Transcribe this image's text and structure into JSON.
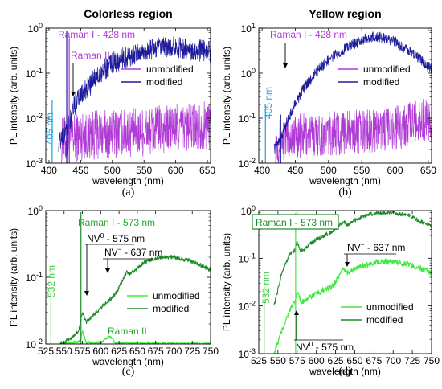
{
  "colors": {
    "unmodified_ab": "#b03ad6",
    "modified_ab": "#1d1a9c",
    "laser_ab": "#16a5e0",
    "unmodified_cd": "#3fea3f",
    "modified_cd": "#1d8a2a",
    "laser_cd": "#40c940",
    "raman_label_ab": "#b03ad6",
    "raman_label_cd": "#25a52f",
    "axis": "#000000"
  },
  "chart_data": [
    {
      "type": "line",
      "panel_caption": "(a)",
      "title": "Colorless region",
      "xlabel": "wavelength (nm)",
      "ylabel": "PL intensity (arb. units)",
      "xlim": [
        395,
        655
      ],
      "ylim_log10": [
        -3,
        0
      ],
      "log_y": true,
      "xticks": [
        "400",
        "450",
        "500",
        "550",
        "600",
        "650"
      ],
      "yticks": [
        "10-3",
        "10-2",
        "10-1",
        "100"
      ],
      "legend": [
        "unmodified",
        "modified"
      ],
      "legend_position": "right",
      "series": [
        {
          "name": "unmodified",
          "x": [
            420,
            450,
            500,
            550,
            600,
            650
          ],
          "y": [
            0.003,
            0.004,
            0.0045,
            0.005,
            0.006,
            0.007
          ]
        },
        {
          "name": "modified",
          "x": [
            415,
            430,
            440,
            460,
            480,
            500,
            530,
            560,
            580,
            600,
            630,
            650
          ],
          "y": [
            0.003,
            0.006,
            0.02,
            0.045,
            0.1,
            0.17,
            0.25,
            0.33,
            0.37,
            0.38,
            0.33,
            0.3
          ]
        }
      ],
      "annotations": [
        {
          "text": "Raman I - 428 nm",
          "x": 428
        },
        {
          "text": "Raman II",
          "x": 449
        },
        {
          "text": "405 nm",
          "x": 405
        }
      ]
    },
    {
      "type": "line",
      "panel_caption": "(b)",
      "title": "Yellow region",
      "xlabel": "wavelength (nm)",
      "ylabel": "PL intensity (arb. units)",
      "xlim": [
        395,
        655
      ],
      "ylim_log10": [
        -2,
        1
      ],
      "log_y": true,
      "xticks": [
        "400",
        "450",
        "500",
        "550",
        "600",
        "650"
      ],
      "yticks": [
        "10-2",
        "10-1",
        "100",
        "101"
      ],
      "legend": [
        "unmodified",
        "modified"
      ],
      "legend_position": "right",
      "series": [
        {
          "name": "unmodified",
          "x": [
            420,
            450,
            500,
            550,
            600,
            650
          ],
          "y": [
            0.03,
            0.04,
            0.045,
            0.05,
            0.06,
            0.1
          ]
        },
        {
          "name": "modified",
          "x": [
            418,
            430,
            440,
            460,
            480,
            500,
            530,
            560,
            575,
            600,
            630,
            655
          ],
          "y": [
            0.02,
            0.04,
            0.1,
            0.4,
            1.0,
            2.0,
            4.0,
            6.0,
            6.5,
            5.0,
            2.5,
            1.2
          ]
        }
      ],
      "annotations": [
        {
          "text": "Raman I - 428 nm",
          "x": 428
        },
        {
          "text": "405 nm",
          "x": 405
        }
      ]
    },
    {
      "type": "line",
      "panel_caption": "(c)",
      "xlabel": "wavelength (nm)",
      "ylabel": "PL intensity (arb. units)",
      "xlim": [
        525,
        750
      ],
      "ylim_log10": [
        -2,
        0
      ],
      "log_y": true,
      "xticks": [
        "525",
        "550",
        "575",
        "600",
        "625",
        "650",
        "675",
        "700",
        "725",
        "750"
      ],
      "yticks": [
        "10-2",
        "10-1",
        "100"
      ],
      "legend": [
        "unmodified",
        "modified"
      ],
      "legend_position": "lower right",
      "series": [
        {
          "name": "unmodified",
          "x": [
            545,
            560,
            572,
            575,
            580,
            600,
            612,
            620,
            650,
            700,
            750
          ],
          "y": [
            0.0102,
            0.0104,
            0.011,
            0.016,
            0.0106,
            0.0104,
            0.013,
            0.0104,
            0.0102,
            0.0101,
            0.01
          ]
        },
        {
          "name": "modified",
          "x": [
            545,
            560,
            570,
            575,
            580,
            600,
            620,
            636,
            640,
            660,
            680,
            700,
            720,
            750
          ],
          "y": [
            0.0102,
            0.012,
            0.016,
            0.03,
            0.021,
            0.035,
            0.055,
            0.12,
            0.11,
            0.17,
            0.2,
            0.2,
            0.18,
            0.13
          ]
        }
      ],
      "annotations": [
        {
          "text": "Raman I - 573 nm",
          "x": 573
        },
        {
          "text": "NV0 - 575 nm",
          "x": 575
        },
        {
          "text": "NV− - 637 nm",
          "x": 637
        },
        {
          "text": "Raman II",
          "x": 612
        },
        {
          "text": "532 nm",
          "x": 532
        }
      ]
    },
    {
      "type": "line",
      "panel_caption": "(d)",
      "xlabel": "wavelength (nm)",
      "ylabel": "PL intensity (arb. units)",
      "xlim": [
        525,
        750
      ],
      "ylim_log10": [
        -3,
        0
      ],
      "log_y": true,
      "xticks": [
        "525",
        "550",
        "575",
        "600",
        "625",
        "650",
        "675",
        "700",
        "725",
        "750"
      ],
      "yticks": [
        "10-3",
        "10-2",
        "10-1",
        "100"
      ],
      "legend": [
        "unmodified",
        "modified"
      ],
      "legend_position": "lower right",
      "series": [
        {
          "name": "unmodified",
          "x": [
            545,
            555,
            565,
            572,
            575,
            580,
            600,
            620,
            636,
            640,
            660,
            680,
            700,
            720,
            750
          ],
          "y": [
            0.001,
            0.003,
            0.008,
            0.012,
            0.02,
            0.012,
            0.018,
            0.025,
            0.06,
            0.05,
            0.07,
            0.085,
            0.085,
            0.075,
            0.05
          ]
        },
        {
          "name": "modified",
          "x": [
            545,
            555,
            565,
            572,
            575,
            580,
            600,
            620,
            636,
            640,
            660,
            680,
            700,
            720,
            750
          ],
          "y": [
            0.01,
            0.05,
            0.12,
            0.15,
            0.22,
            0.14,
            0.25,
            0.35,
            0.6,
            0.5,
            0.75,
            0.9,
            0.9,
            0.8,
            0.45
          ]
        }
      ],
      "annotations": [
        {
          "text": "Raman I - 573 nm",
          "x": 573
        },
        {
          "text": "NV− - 637 nm",
          "x": 637
        },
        {
          "text": "NV0 - 575 nm",
          "x": 575
        },
        {
          "text": "532 nm",
          "x": 532
        }
      ]
    }
  ]
}
